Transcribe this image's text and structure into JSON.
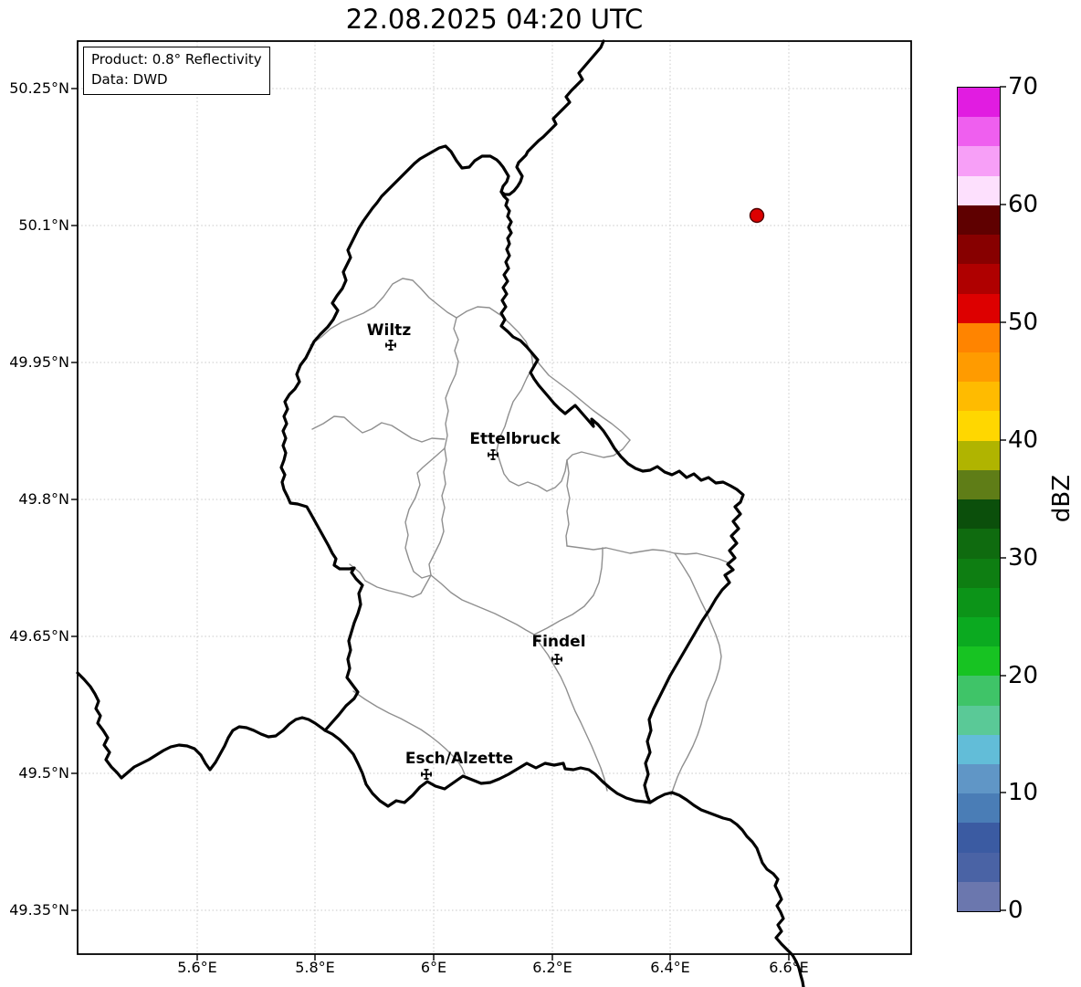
{
  "title": "22.08.2025 04:20 UTC",
  "info_box": {
    "line1": "Product: 0.8° Reflectivity",
    "line2": "Data: DWD"
  },
  "axes": {
    "x_ticks": [
      "5.6°E",
      "5.8°E",
      "6°E",
      "6.2°E",
      "6.4°E",
      "6.6°E"
    ],
    "y_ticks": [
      "50.25°N",
      "50.1°N",
      "49.95°N",
      "49.8°N",
      "49.65°N",
      "49.5°N",
      "49.35°N"
    ]
  },
  "cities": [
    {
      "name": "Wiltz"
    },
    {
      "name": "Ettelbruck"
    },
    {
      "name": "Findel"
    },
    {
      "name": "Esch/Alzette"
    }
  ],
  "radar_point": {
    "color": "#dd0000",
    "edge_color": "#4d0000",
    "approx_lon": 6.55,
    "approx_lat": 50.11
  },
  "colorbar": {
    "label": "dBZ",
    "unit": "dBZ",
    "ticks": [
      "70",
      "60",
      "50",
      "40",
      "30",
      "20",
      "10",
      "0"
    ],
    "range": [
      0,
      70
    ],
    "colors_top_to_bottom": [
      "#e11ce1",
      "#ef5fef",
      "#f79ff7",
      "#fde0fd",
      "#5f0000",
      "#870000",
      "#af0000",
      "#dd0000",
      "#ff8400",
      "#ff9b00",
      "#ffbb00",
      "#ffd700",
      "#b0b400",
      "#5f7d17",
      "#0b4f0b",
      "#0f6b0f",
      "#0e7e12",
      "#0c9418",
      "#0baa20",
      "#17c322",
      "#3fc468",
      "#5ac997",
      "#62bdd8",
      "#6096c6",
      "#4a7db6",
      "#3b5ba2",
      "#4a63a5",
      "#6b77ae"
    ]
  }
}
